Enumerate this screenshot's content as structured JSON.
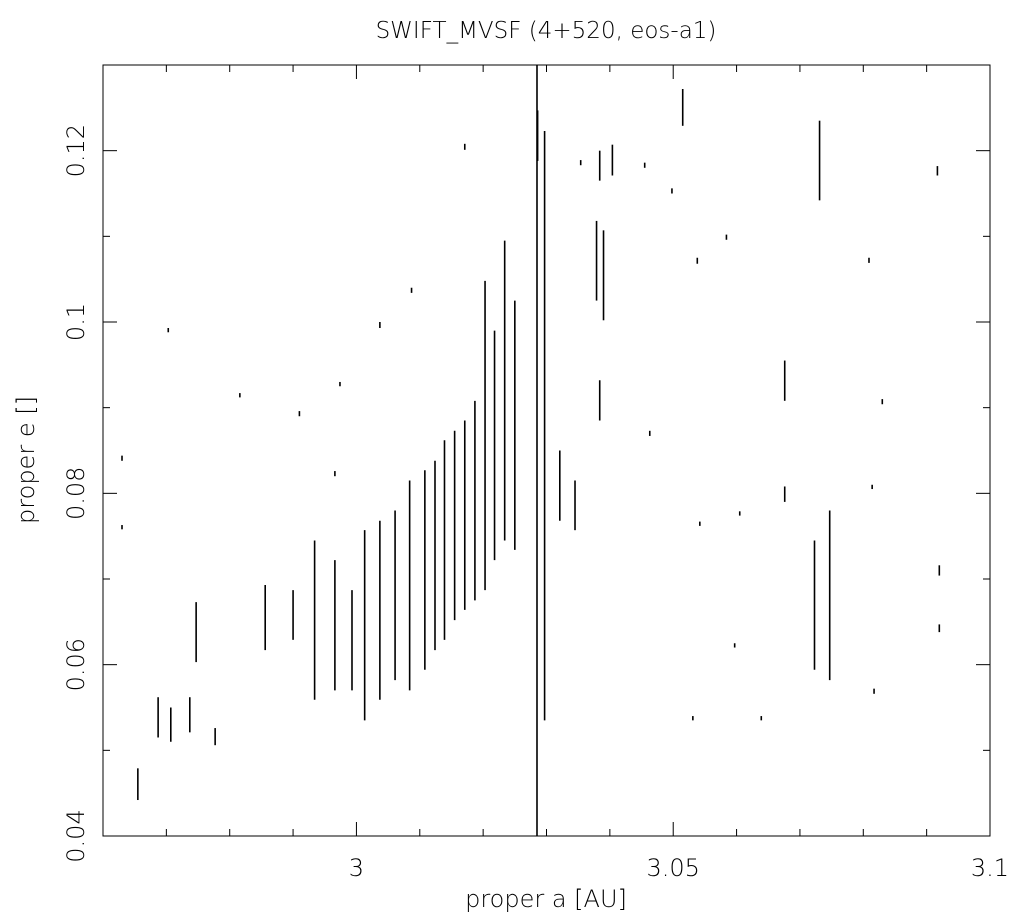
{
  "chart_data": {
    "type": "segments",
    "title": "SWIFT_MVSF (4+520, eos-a1)",
    "x_label": "proper a [AU]",
    "y_label": "proper e []",
    "xlim": [
      2.96,
      3.1
    ],
    "ylim": [
      0.04,
      0.13
    ],
    "xticks": [
      3,
      3.05,
      3.1
    ],
    "yticks": [
      0.04,
      0.06,
      0.08,
      0.1,
      0.12
    ],
    "xminorticks": [
      2.97,
      2.98,
      2.99,
      3.01,
      3.02,
      3.03,
      3.04,
      3.06,
      3.07,
      3.08,
      3.09
    ],
    "yminorticks": [
      0.05,
      0.07,
      0.09,
      0.11
    ],
    "color": "#000000",
    "x": [
      2.9655,
      2.9687,
      2.9707,
      2.9737,
      2.9747,
      2.9777,
      2.9856,
      2.99,
      2.9934,
      2.9966,
      2.9993,
      3.0013,
      3.0037,
      3.0061,
      3.0084,
      3.0108,
      3.0124,
      3.0139,
      3.0155,
      3.0171,
      3.0187,
      3.0203,
      3.0218,
      3.0234,
      3.025,
      3.0285,
      3.0297,
      3.0286,
      3.0321,
      3.0345,
      3.0379,
      3.0384,
      3.039,
      3.0384,
      3.0404,
      3.0515,
      3.0676,
      3.0676,
      3.0731,
      3.0747,
      3.0723,
      3.0917,
      3.092,
      3.092,
      2.963,
      2.963,
      2.9703,
      2.9816,
      2.991,
      2.9966,
      2.9974,
      3.0037,
      3.0087,
      3.0171,
      3.0354,
      3.0455,
      3.0498,
      3.0584,
      3.0538,
      3.0463,
      3.0542,
      3.0605,
      3.0809,
      3.083,
      3.0814,
      3.0817,
      3.0639,
      3.0531,
      3.0597
    ],
    "y_low": [
      0.0442,
      0.0515,
      0.051,
      0.0521,
      0.0603,
      0.0506,
      0.0617,
      0.0629,
      0.0559,
      0.057,
      0.057,
      0.0535,
      0.0559,
      0.0582,
      0.057,
      0.0594,
      0.0617,
      0.0629,
      0.0652,
      0.0664,
      0.0675,
      0.0687,
      0.0722,
      0.0745,
      0.0734,
      0.04,
      0.0535,
      0.1188,
      0.0768,
      0.0757,
      0.1025,
      0.1165,
      0.1002,
      0.0885,
      0.1171,
      0.1229,
      0.0908,
      0.079,
      0.1142,
      0.0582,
      0.0594,
      0.1171,
      0.0704,
      0.0638,
      0.0838,
      0.0758,
      0.0988,
      0.0912,
      0.089,
      0.082,
      0.0925,
      0.0993,
      0.1034,
      0.1201,
      0.1183,
      0.118,
      0.115,
      0.1096,
      0.1068,
      0.0867,
      0.0762,
      0.0774,
      0.1069,
      0.0904,
      0.0805,
      0.0566,
      0.0535,
      0.0535,
      0.062
    ],
    "y_high": [
      0.0479,
      0.0562,
      0.055,
      0.0562,
      0.0673,
      0.0526,
      0.0693,
      0.0687,
      0.0745,
      0.0722,
      0.0687,
      0.0757,
      0.0768,
      0.078,
      0.0815,
      0.0827,
      0.0838,
      0.0862,
      0.0873,
      0.0885,
      0.0908,
      0.1048,
      0.099,
      0.1095,
      0.1025,
      0.13,
      0.1223,
      0.1247,
      0.085,
      0.0815,
      0.1118,
      0.12,
      0.1107,
      0.0932,
      0.1207,
      0.1272,
      0.0955,
      0.0808,
      0.1235,
      0.078,
      0.0745,
      0.1182,
      0.0716,
      0.0647,
      0.0844,
      0.0763,
      0.0993,
      0.0917,
      0.0896,
      0.0826,
      0.093,
      0.1,
      0.104,
      0.1208,
      0.1189,
      0.1186,
      0.1156,
      0.1102,
      0.1075,
      0.0873,
      0.0767,
      0.0779,
      0.1075,
      0.091,
      0.081,
      0.0572,
      0.054,
      0.054,
      0.0625
    ]
  }
}
